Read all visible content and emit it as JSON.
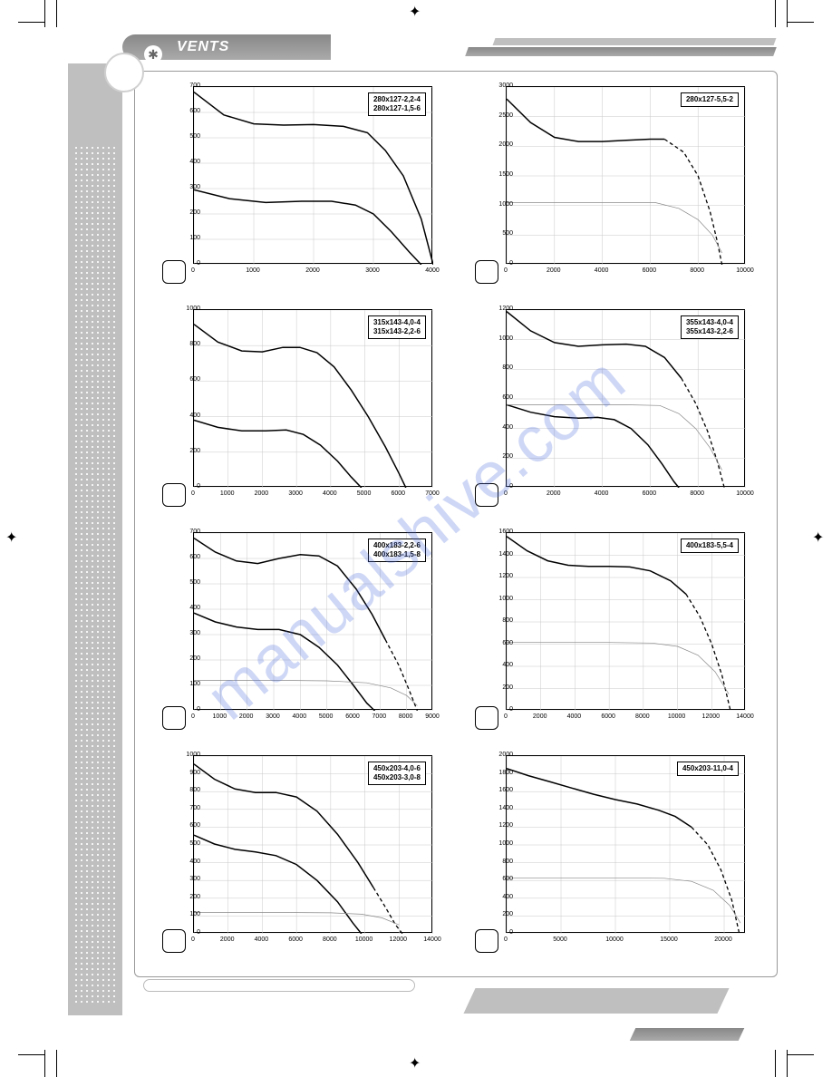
{
  "brand": {
    "name": "VENTS",
    "icon": "✱"
  },
  "watermark": "manualshive.com",
  "grid_color": "#c8c8c8",
  "line_color": "#000000",
  "line2_color": "#888888",
  "label_fontsize": 8,
  "tick_fontsize": 7,
  "charts": [
    {
      "labels": [
        "280x127-2,2-4",
        "280x127-1,5-6"
      ],
      "x_max": 4000,
      "x_step": 1000,
      "y_max": 700,
      "y_step": 100,
      "series": [
        {
          "style": "solid",
          "points": [
            [
              0,
              680
            ],
            [
              500,
              590
            ],
            [
              1000,
              555
            ],
            [
              1500,
              550
            ],
            [
              2000,
              552
            ],
            [
              2500,
              545
            ],
            [
              2900,
              520
            ],
            [
              3200,
              450
            ],
            [
              3500,
              350
            ],
            [
              3800,
              180
            ],
            [
              4000,
              0
            ]
          ]
        },
        {
          "style": "solid",
          "points": [
            [
              0,
              295
            ],
            [
              600,
              260
            ],
            [
              1200,
              245
            ],
            [
              1800,
              250
            ],
            [
              2300,
              250
            ],
            [
              2700,
              235
            ],
            [
              3000,
              200
            ],
            [
              3300,
              130
            ],
            [
              3600,
              50
            ],
            [
              3800,
              0
            ]
          ]
        }
      ]
    },
    {
      "labels": [
        "280x127-5,5-2"
      ],
      "x_max": 10000,
      "x_step": 2000,
      "y_max": 3000,
      "y_step": 500,
      "series": [
        {
          "style": "solid",
          "points": [
            [
              0,
              2800
            ],
            [
              1000,
              2400
            ],
            [
              2000,
              2150
            ],
            [
              3000,
              2080
            ],
            [
              4000,
              2080
            ],
            [
              5000,
              2100
            ],
            [
              6000,
              2120
            ],
            [
              6600,
              2120
            ]
          ]
        },
        {
          "style": "dashed",
          "points": [
            [
              6600,
              2120
            ],
            [
              7400,
              1900
            ],
            [
              8000,
              1500
            ],
            [
              8500,
              900
            ],
            [
              8800,
              400
            ],
            [
              9000,
              0
            ]
          ]
        },
        {
          "style": "thin",
          "points": [
            [
              0,
              1050
            ],
            [
              4000,
              1050
            ],
            [
              6200,
              1050
            ],
            [
              7200,
              950
            ],
            [
              8000,
              760
            ],
            [
              8600,
              500
            ],
            [
              9000,
              200
            ]
          ]
        }
      ]
    },
    {
      "labels": [
        "315x143-4,0-4",
        "315x143-2,2-6"
      ],
      "x_max": 7000,
      "x_step": 1000,
      "y_max": 1000,
      "y_step": 200,
      "series": [
        {
          "style": "solid",
          "points": [
            [
              0,
              920
            ],
            [
              700,
              820
            ],
            [
              1400,
              770
            ],
            [
              2000,
              765
            ],
            [
              2600,
              790
            ],
            [
              3100,
              790
            ],
            [
              3600,
              760
            ],
            [
              4100,
              680
            ],
            [
              4600,
              550
            ],
            [
              5100,
              400
            ],
            [
              5600,
              230
            ],
            [
              6000,
              80
            ],
            [
              6200,
              0
            ]
          ]
        },
        {
          "style": "solid",
          "points": [
            [
              0,
              380
            ],
            [
              700,
              340
            ],
            [
              1400,
              320
            ],
            [
              2100,
              320
            ],
            [
              2700,
              325
            ],
            [
              3200,
              300
            ],
            [
              3700,
              240
            ],
            [
              4200,
              150
            ],
            [
              4600,
              60
            ],
            [
              4900,
              0
            ]
          ]
        }
      ]
    },
    {
      "labels": [
        "355x143-4,0-4",
        "355x143-2,2-6"
      ],
      "x_max": 10000,
      "x_step": 2000,
      "y_max": 1200,
      "y_step": 200,
      "series": [
        {
          "style": "solid",
          "points": [
            [
              0,
              1190
            ],
            [
              1000,
              1060
            ],
            [
              2000,
              980
            ],
            [
              3000,
              955
            ],
            [
              4000,
              965
            ],
            [
              5000,
              970
            ],
            [
              5800,
              955
            ],
            [
              6600,
              880
            ],
            [
              7300,
              740
            ]
          ]
        },
        {
          "style": "dashed",
          "points": [
            [
              7300,
              740
            ],
            [
              7900,
              570
            ],
            [
              8400,
              380
            ],
            [
              8800,
              180
            ],
            [
              9100,
              0
            ]
          ]
        },
        {
          "style": "solid",
          "points": [
            [
              0,
              560
            ],
            [
              1000,
              510
            ],
            [
              2000,
              480
            ],
            [
              3000,
              470
            ],
            [
              3800,
              475
            ],
            [
              4500,
              460
            ],
            [
              5200,
              400
            ],
            [
              5900,
              290
            ],
            [
              6500,
              160
            ],
            [
              7000,
              40
            ],
            [
              7200,
              0
            ]
          ]
        },
        {
          "style": "thin",
          "points": [
            [
              0,
              560
            ],
            [
              5000,
              560
            ],
            [
              6400,
              555
            ],
            [
              7200,
              500
            ],
            [
              7900,
              400
            ],
            [
              8500,
              270
            ],
            [
              9000,
              120
            ]
          ]
        }
      ]
    },
    {
      "labels": [
        "400x183-2,2-6",
        "400x183-1,5-8"
      ],
      "x_max": 9000,
      "x_step": 1000,
      "y_max": 700,
      "y_step": 100,
      "series": [
        {
          "style": "solid",
          "points": [
            [
              0,
              680
            ],
            [
              800,
              625
            ],
            [
              1600,
              590
            ],
            [
              2400,
              580
            ],
            [
              3200,
              600
            ],
            [
              4000,
              615
            ],
            [
              4700,
              610
            ],
            [
              5400,
              570
            ],
            [
              6100,
              480
            ],
            [
              6700,
              380
            ],
            [
              7200,
              280
            ]
          ]
        },
        {
          "style": "dashed",
          "points": [
            [
              7200,
              280
            ],
            [
              7700,
              180
            ],
            [
              8100,
              80
            ],
            [
              8400,
              0
            ]
          ]
        },
        {
          "style": "solid",
          "points": [
            [
              0,
              385
            ],
            [
              800,
              350
            ],
            [
              1600,
              330
            ],
            [
              2400,
              320
            ],
            [
              3200,
              320
            ],
            [
              4000,
              300
            ],
            [
              4700,
              250
            ],
            [
              5400,
              180
            ],
            [
              6000,
              100
            ],
            [
              6500,
              30
            ],
            [
              6800,
              0
            ]
          ]
        },
        {
          "style": "thin",
          "points": [
            [
              0,
              120
            ],
            [
              3000,
              120
            ],
            [
              5000,
              118
            ],
            [
              6500,
              110
            ],
            [
              7400,
              90
            ],
            [
              8000,
              60
            ],
            [
              8400,
              20
            ]
          ]
        }
      ]
    },
    {
      "labels": [
        "400x183-5,5-4"
      ],
      "x_max": 14000,
      "x_step": 2000,
      "y_max": 1600,
      "y_step": 200,
      "series": [
        {
          "style": "solid",
          "points": [
            [
              0,
              1570
            ],
            [
              1200,
              1440
            ],
            [
              2400,
              1350
            ],
            [
              3600,
              1310
            ],
            [
              4800,
              1300
            ],
            [
              6000,
              1300
            ],
            [
              7200,
              1295
            ],
            [
              8400,
              1260
            ],
            [
              9600,
              1170
            ],
            [
              10500,
              1050
            ]
          ]
        },
        {
          "style": "dashed",
          "points": [
            [
              10500,
              1050
            ],
            [
              11300,
              850
            ],
            [
              12000,
              600
            ],
            [
              12600,
              320
            ],
            [
              13100,
              0
            ]
          ]
        },
        {
          "style": "thin",
          "points": [
            [
              0,
              615
            ],
            [
              6000,
              615
            ],
            [
              8500,
              610
            ],
            [
              10000,
              580
            ],
            [
              11200,
              500
            ],
            [
              12200,
              350
            ],
            [
              13000,
              150
            ]
          ]
        }
      ]
    },
    {
      "labels": [
        "450x203-4,0-6",
        "450x203-3,0-8"
      ],
      "x_max": 14000,
      "x_step": 2000,
      "y_max": 1000,
      "y_step": 100,
      "series": [
        {
          "style": "solid",
          "points": [
            [
              0,
              955
            ],
            [
              1200,
              870
            ],
            [
              2400,
              815
            ],
            [
              3600,
              795
            ],
            [
              4800,
              795
            ],
            [
              6000,
              770
            ],
            [
              7200,
              690
            ],
            [
              8400,
              560
            ],
            [
              9600,
              400
            ],
            [
              10500,
              260
            ]
          ]
        },
        {
          "style": "dashed",
          "points": [
            [
              10500,
              260
            ],
            [
              11200,
              150
            ],
            [
              11800,
              50
            ],
            [
              12200,
              0
            ]
          ]
        },
        {
          "style": "solid",
          "points": [
            [
              0,
              555
            ],
            [
              1200,
              505
            ],
            [
              2400,
              475
            ],
            [
              3600,
              460
            ],
            [
              4800,
              440
            ],
            [
              6000,
              390
            ],
            [
              7200,
              300
            ],
            [
              8400,
              180
            ],
            [
              9300,
              60
            ],
            [
              9800,
              0
            ]
          ]
        },
        {
          "style": "thin",
          "points": [
            [
              0,
              120
            ],
            [
              5000,
              120
            ],
            [
              8000,
              118
            ],
            [
              9800,
              110
            ],
            [
              11000,
              90
            ],
            [
              12000,
              50
            ]
          ]
        }
      ]
    },
    {
      "labels": [
        "450x203-11,0-4"
      ],
      "x_max": 22000,
      "x_step": 5000,
      "y_max": 2000,
      "y_step": 200,
      "series": [
        {
          "style": "solid",
          "points": [
            [
              0,
              1860
            ],
            [
              2000,
              1780
            ],
            [
              4000,
              1710
            ],
            [
              6000,
              1640
            ],
            [
              8000,
              1570
            ],
            [
              10000,
              1510
            ],
            [
              12000,
              1460
            ],
            [
              14000,
              1390
            ],
            [
              15500,
              1320
            ],
            [
              17000,
              1200
            ]
          ]
        },
        {
          "style": "dashed",
          "points": [
            [
              17000,
              1200
            ],
            [
              18500,
              1000
            ],
            [
              19700,
              720
            ],
            [
              20700,
              380
            ],
            [
              21400,
              0
            ]
          ]
        },
        {
          "style": "thin",
          "points": [
            [
              0,
              630
            ],
            [
              10000,
              630
            ],
            [
              14500,
              625
            ],
            [
              17000,
              590
            ],
            [
              19000,
              490
            ],
            [
              20500,
              320
            ],
            [
              21500,
              120
            ]
          ]
        }
      ]
    }
  ]
}
